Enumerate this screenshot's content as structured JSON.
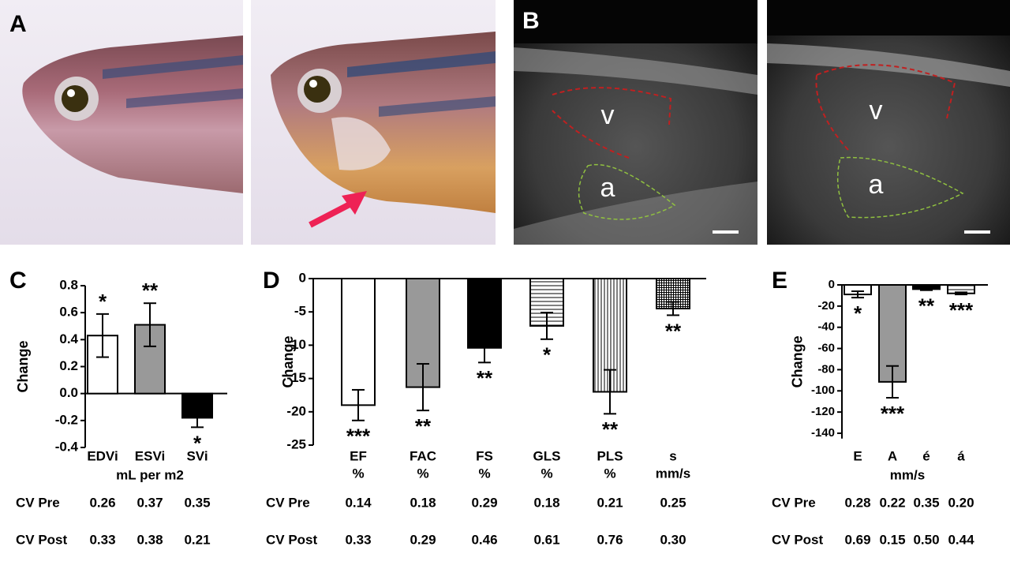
{
  "panels": {
    "a": "A",
    "b": "B"
  },
  "ultrasound_labels": [
    "v",
    "a",
    "v",
    "a"
  ],
  "chart_data": [
    {
      "type": "bar",
      "panel": "C",
      "y_label": "Change",
      "x_label": "mL per m2",
      "categories": [
        "EDVi",
        "ESVi",
        "SVi"
      ],
      "values": [
        0.43,
        0.51,
        -0.18
      ],
      "errors": [
        0.16,
        0.16,
        0.07
      ],
      "significance": [
        "*",
        "**",
        "*"
      ],
      "fills": [
        "#ffffff",
        "#999999",
        "#000000"
      ],
      "ylim": [
        -0.4,
        0.8
      ],
      "yticks": [
        -0.4,
        -0.2,
        {
          "value": 0,
          "label": "0.0"
        },
        0.2,
        0.4,
        0.6,
        0.8
      ],
      "cv_table": [
        {
          "label": "CV Pre",
          "cells": [
            "0.26",
            "0.37",
            "0.35"
          ]
        },
        {
          "label": "CV Post",
          "cells": [
            "0.33",
            "0.38",
            "0.21"
          ]
        }
      ]
    },
    {
      "type": "bar",
      "panel": "D",
      "y_label": "Change",
      "categories": [
        "EF",
        "FAC",
        "FS",
        "GLS",
        "PLS",
        "s"
      ],
      "units": [
        "%",
        "%",
        "%",
        "%",
        "%",
        "mm/s"
      ],
      "values": [
        -19,
        -16.3,
        -10.4,
        -7.1,
        -17,
        -4.5
      ],
      "errors": [
        2.3,
        3.5,
        2.2,
        2.0,
        3.3,
        1.0
      ],
      "significance": [
        "***",
        "**",
        "**",
        "*",
        "**",
        "**"
      ],
      "fills": [
        "#ffffff",
        "#999999",
        "#000000",
        "hlines",
        "vlines",
        "grid"
      ],
      "ylim": [
        -25,
        0
      ],
      "yticks": [
        -25,
        -20,
        -15,
        -10,
        -5,
        0
      ],
      "cv_table": [
        {
          "label": "CV Pre",
          "cells": [
            "0.14",
            "0.18",
            "0.29",
            "0.18",
            "0.21",
            "0.25"
          ]
        },
        {
          "label": "CV Post",
          "cells": [
            "0.33",
            "0.29",
            "0.46",
            "0.61",
            "0.76",
            "0.30"
          ]
        }
      ]
    },
    {
      "type": "bar",
      "panel": "E",
      "y_label": "Change",
      "x_label": "mm/s",
      "categories": [
        "E",
        "A",
        "é",
        "á"
      ],
      "values": [
        -9,
        -91.5,
        -4,
        -8
      ],
      "errors": [
        3,
        15,
        1,
        1
      ],
      "significance": [
        "*",
        "***",
        "**",
        "***"
      ],
      "fills": [
        "#ffffff",
        "#999999",
        "#000000",
        "hlines"
      ],
      "ylim": [
        -145,
        0
      ],
      "yticks": [
        -140,
        -120,
        -100,
        -80,
        -60,
        -40,
        -20,
        0
      ],
      "cv_table": [
        {
          "label": "CV Pre",
          "cells": [
            "0.28",
            "0.22",
            "0.35",
            "0.20"
          ]
        },
        {
          "label": "CV Post",
          "cells": [
            "0.69",
            "0.15",
            "0.50",
            "0.44"
          ]
        }
      ]
    }
  ]
}
